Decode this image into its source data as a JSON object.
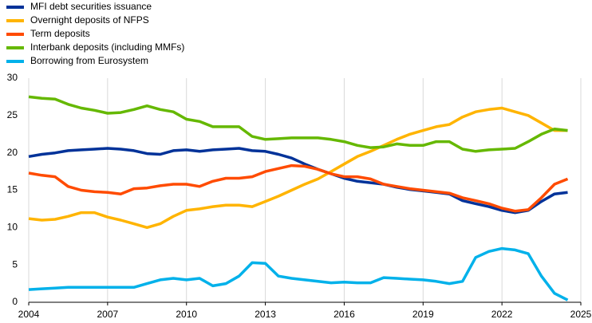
{
  "chart_data": {
    "type": "line",
    "x": [
      2004,
      2004.5,
      2005,
      2005.5,
      2006,
      2006.5,
      2007,
      2007.5,
      2008,
      2008.5,
      2009,
      2009.5,
      2010,
      2010.5,
      2011,
      2011.5,
      2012,
      2012.5,
      2013,
      2013.5,
      2014,
      2014.5,
      2015,
      2015.5,
      2016,
      2016.5,
      2017,
      2017.5,
      2018,
      2018.5,
      2019,
      2019.5,
      2020,
      2020.5,
      2021,
      2021.5,
      2022,
      2022.5,
      2023,
      2023.5,
      2024,
      2024.5
    ],
    "xlim": [
      2004,
      2025
    ],
    "xticks": [
      2004,
      2007,
      2010,
      2013,
      2016,
      2019,
      2022,
      2025
    ],
    "ylim": [
      0,
      30
    ],
    "yticks": [
      0,
      5,
      10,
      15,
      20,
      25,
      30
    ],
    "grid": true,
    "series": [
      {
        "name": "MFI debt securities issuance",
        "color": "#003299",
        "values": [
          19.5,
          19.8,
          20,
          20.3,
          20.4,
          20.5,
          20.6,
          20.5,
          20.3,
          19.9,
          19.8,
          20.3,
          20.4,
          20.2,
          20.4,
          20.5,
          20.6,
          20.3,
          20.2,
          19.8,
          19.3,
          18.5,
          17.8,
          17.2,
          16.6,
          16.2,
          16.0,
          15.8,
          15.4,
          15.1,
          14.9,
          14.7,
          14.5,
          13.6,
          13.2,
          12.8,
          12.3,
          12.0,
          12.3,
          13.5,
          14.5,
          14.7
        ]
      },
      {
        "name": "Overnight deposits of NFPS",
        "color": "#ffb400",
        "values": [
          11.2,
          11.0,
          11.1,
          11.5,
          12.0,
          12.0,
          11.4,
          11.0,
          10.5,
          10.0,
          10.5,
          11.5,
          12.3,
          12.5,
          12.8,
          13.0,
          13.0,
          12.8,
          13.5,
          14.2,
          15.0,
          15.8,
          16.5,
          17.5,
          18.5,
          19.5,
          20.2,
          21.0,
          21.8,
          22.5,
          23.0,
          23.5,
          23.8,
          24.8,
          25.5,
          25.8,
          26.0,
          25.5,
          25.0,
          24.0,
          23.0,
          23.0
        ]
      },
      {
        "name": "Term deposits",
        "color": "#ff4b00",
        "values": [
          17.3,
          17.0,
          16.8,
          15.5,
          15.0,
          14.8,
          14.7,
          14.5,
          15.2,
          15.3,
          15.6,
          15.8,
          15.8,
          15.5,
          16.2,
          16.6,
          16.6,
          16.8,
          17.5,
          17.9,
          18.3,
          18.2,
          17.8,
          17.2,
          16.8,
          16.8,
          16.5,
          15.8,
          15.5,
          15.2,
          15.0,
          14.8,
          14.6,
          14.0,
          13.6,
          13.2,
          12.6,
          12.2,
          12.4,
          14.0,
          15.8,
          16.5
        ]
      },
      {
        "name": "Interbank deposits (including MMFs)",
        "color": "#65b800",
        "values": [
          27.5,
          27.3,
          27.2,
          26.5,
          26.0,
          25.7,
          25.3,
          25.4,
          25.8,
          26.3,
          25.8,
          25.5,
          24.5,
          24.2,
          23.5,
          23.5,
          23.5,
          22.2,
          21.8,
          21.9,
          22.0,
          22.0,
          22.0,
          21.8,
          21.5,
          21.0,
          20.7,
          20.8,
          21.2,
          21.0,
          21.0,
          21.5,
          21.5,
          20.5,
          20.2,
          20.4,
          20.5,
          20.6,
          21.5,
          22.5,
          23.2,
          23.0
        ]
      },
      {
        "name": "Borrowing from Eurosystem",
        "color": "#00b1ea",
        "values": [
          1.7,
          1.8,
          1.9,
          2.0,
          2.0,
          2.0,
          2.0,
          2.0,
          2.0,
          2.5,
          3.0,
          3.2,
          3.0,
          3.2,
          2.2,
          2.5,
          3.5,
          5.3,
          5.2,
          3.5,
          3.2,
          3.0,
          2.8,
          2.6,
          2.7,
          2.6,
          2.6,
          3.3,
          3.2,
          3.1,
          3.0,
          2.8,
          2.5,
          2.8,
          6.0,
          6.8,
          7.2,
          7.0,
          6.5,
          3.5,
          1.2,
          0.3
        ]
      }
    ]
  }
}
